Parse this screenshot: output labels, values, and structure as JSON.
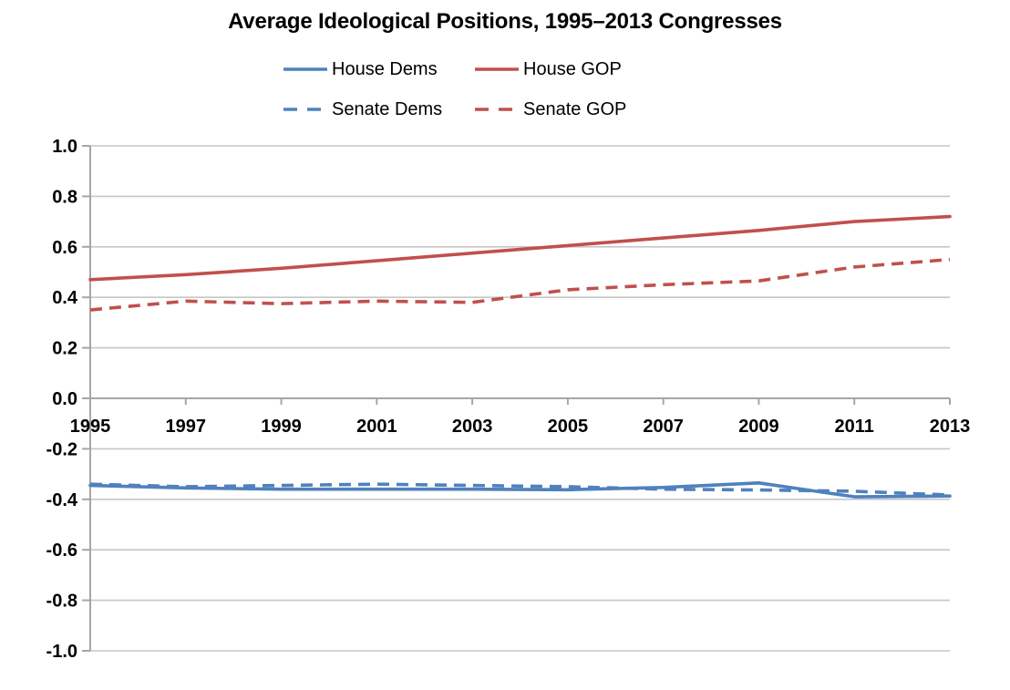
{
  "title": "Average Ideological Positions, 1995–2013 Congresses",
  "colors": {
    "dem_blue": "#4F81BD",
    "gop_red": "#C0504D",
    "gridline": "#C6C6C6",
    "axis": "#A6A6A6",
    "text": "#000000",
    "background": "#FFFFFF"
  },
  "chart_data": {
    "type": "line",
    "title": "Average Ideological Positions, 1995–2013 Congresses",
    "xlabel": "",
    "ylabel": "",
    "xlim": [
      1995,
      2013
    ],
    "ylim": [
      -1.0,
      1.0
    ],
    "grid": true,
    "legend_position": "top",
    "x": [
      1995,
      1997,
      1999,
      2001,
      2003,
      2005,
      2007,
      2009,
      2011,
      2013
    ],
    "x_tick_labels": [
      "1995",
      "1997",
      "1999",
      "2001",
      "2003",
      "2005",
      "2007",
      "2009",
      "2011",
      "2013"
    ],
    "y_ticks": [
      1.0,
      0.8,
      0.6,
      0.4,
      0.2,
      0.0,
      -0.2,
      -0.4,
      -0.6,
      -0.8,
      -1.0
    ],
    "y_tick_labels": [
      "1.0",
      "0.8",
      "0.6",
      "0.4",
      "0.2",
      "0.0",
      "-0.2",
      "-0.4",
      "-0.6",
      "-0.8",
      "-1.0"
    ],
    "series": [
      {
        "name": "House Dems",
        "style": "solid",
        "color": "#4F81BD",
        "values": [
          -0.345,
          -0.355,
          -0.36,
          -0.36,
          -0.36,
          -0.362,
          -0.353,
          -0.335,
          -0.39,
          -0.387
        ]
      },
      {
        "name": "House GOP",
        "style": "solid",
        "color": "#C0504D",
        "values": [
          0.47,
          0.49,
          0.515,
          0.545,
          0.575,
          0.605,
          0.635,
          0.665,
          0.7,
          0.72
        ]
      },
      {
        "name": "Senate Dems",
        "style": "dashed",
        "color": "#4F81BD",
        "values": [
          -0.34,
          -0.35,
          -0.345,
          -0.34,
          -0.345,
          -0.35,
          -0.36,
          -0.363,
          -0.368,
          -0.383
        ]
      },
      {
        "name": "Senate GOP",
        "style": "dashed",
        "color": "#C0504D",
        "values": [
          0.35,
          0.385,
          0.375,
          0.385,
          0.38,
          0.43,
          0.45,
          0.465,
          0.52,
          0.55
        ]
      }
    ]
  }
}
